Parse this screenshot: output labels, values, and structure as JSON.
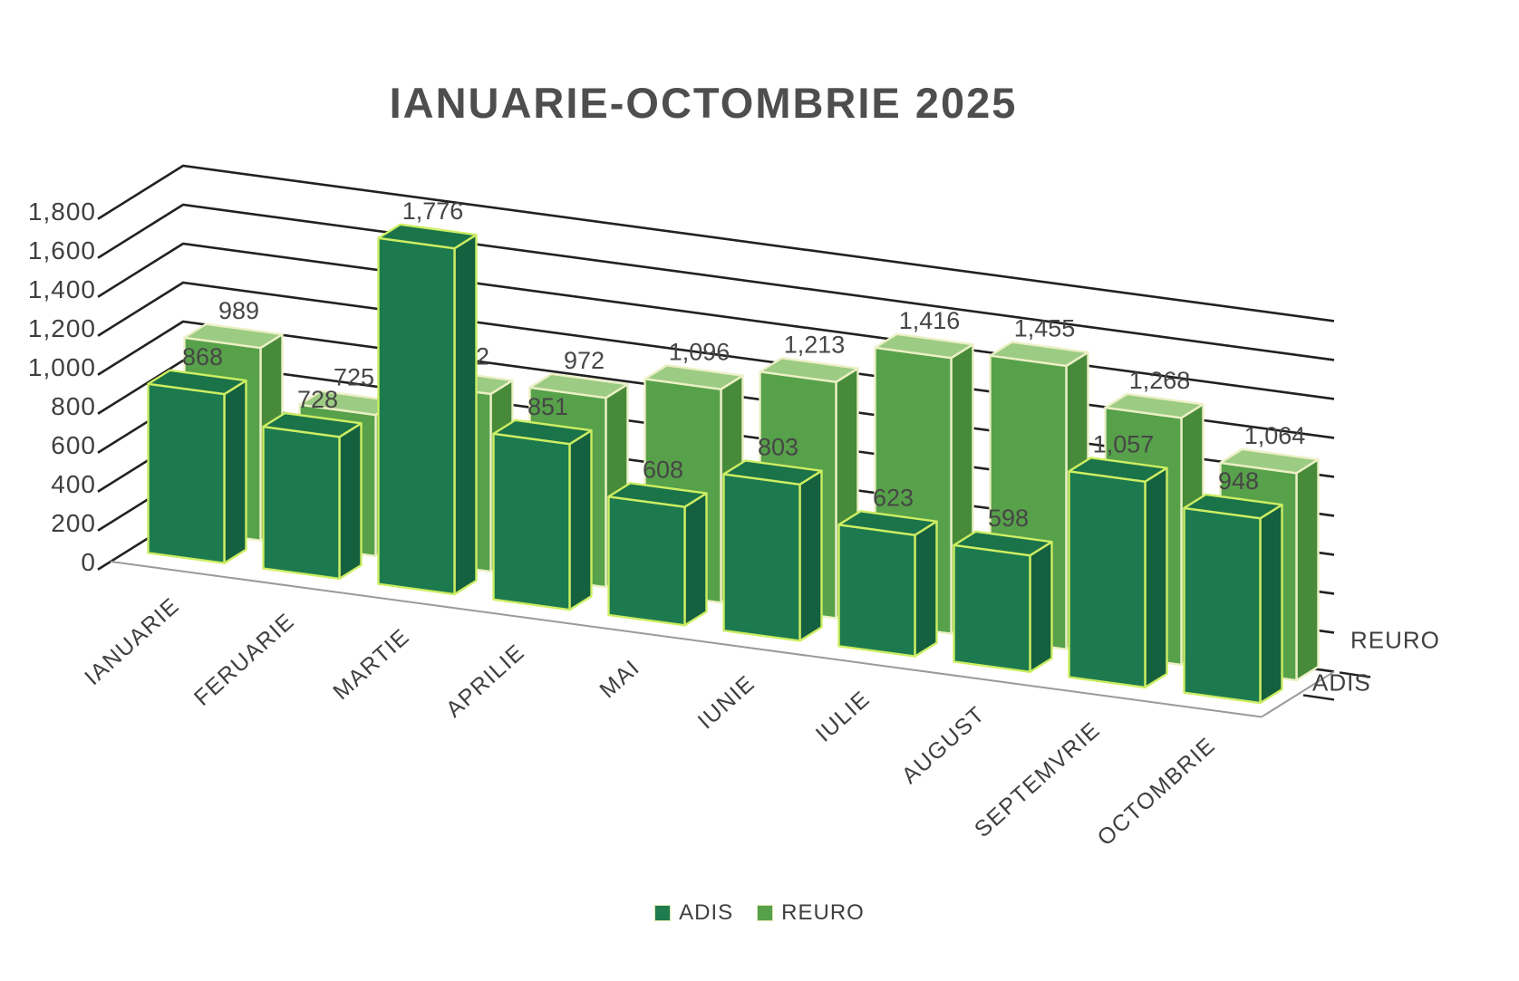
{
  "chart_data": {
    "type": "bar",
    "variant": "3d-column",
    "title": "IANUARIE-OCTOMBRIE 2025",
    "categories": [
      "IANUARIE",
      "FERUARIE",
      "MARTIE",
      "APRILIE",
      "MAI",
      "IUNIE",
      "IULIE",
      "AUGUST",
      "SEPTEMVRIE",
      "OCTOMBRIE"
    ],
    "series": [
      {
        "name": "ADIS",
        "values": [
          868,
          728,
          1776,
          851,
          608,
          803,
          623,
          598,
          1057,
          948
        ],
        "colors": {
          "front": "#1d7a4e",
          "side": "#14603f",
          "top": "#1b7349",
          "edge": "#cdee63",
          "legend": "#1e7c4e"
        }
      },
      {
        "name": "REURO",
        "values": [
          989,
          725,
          912,
          972,
          1096,
          1213,
          1416,
          1455,
          1268,
          1064
        ],
        "colors": {
          "front": "#57a14a",
          "side": "#478a3a",
          "top": "#9ccb83",
          "edge": "#ecf0c6",
          "legend": "#57a14a"
        }
      }
    ],
    "value_axis": {
      "min": 0,
      "max": 1800,
      "step": 200,
      "tick_labels": [
        "0",
        "200",
        "400",
        "600",
        "800",
        "1,000",
        "1,200",
        "1,400",
        "1,600",
        "1,800"
      ]
    },
    "depth_axis_labels_right": [
      "REURO",
      "ADIS"
    ],
    "data_labels_shown": true,
    "grid": true,
    "legend_position": "bottom",
    "style": {
      "grid_color": "#212121",
      "floor_edge_color": "#9a9a9a",
      "axis_text_color": "#3f3f3f",
      "data_label_color": "#464646",
      "title_color": "#4e4e4e"
    }
  },
  "legend": {
    "items": [
      {
        "label": "ADIS"
      },
      {
        "label": "REURO"
      }
    ]
  }
}
